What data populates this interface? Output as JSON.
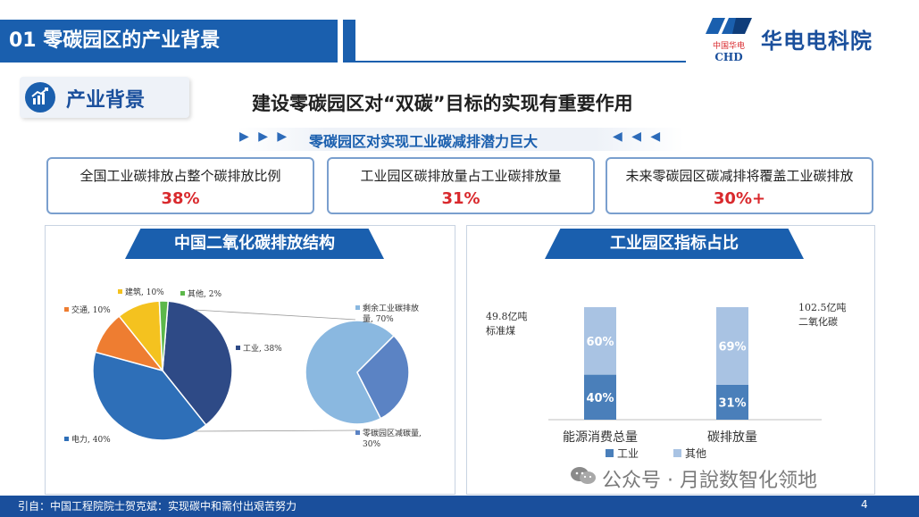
{
  "header": {
    "title": "01 零碳园区的产业背景",
    "brand_small_cn": "中国华电",
    "brand_small_en": "CHD",
    "brand_name": "华电电科院"
  },
  "section": {
    "label": "产业背景",
    "icon": "chart-growth-icon"
  },
  "heading": "建设零碳园区对“双碳”目标的实现有重要作用",
  "subheading": {
    "arrows_left": "▶ ▶ ▶",
    "text": "零碳园区对实现工业碳减排潜力巨大",
    "arrows_right": "◀ ◀ ◀"
  },
  "stats": [
    {
      "label": "全国工业碳排放占整个碳排放比例",
      "value": "38%"
    },
    {
      "label": "工业园区碳排放量占工业碳排放量",
      "value": "31%"
    },
    {
      "label": "未来零碳园区碳减排将覆盖工业碳排放",
      "value": "30%+"
    }
  ],
  "left_panel": {
    "title": "中国二氧化碳排放结构"
  },
  "right_panel": {
    "title": "工业园区指标占比"
  },
  "chart_data": [
    {
      "type": "pie",
      "slices": [
        {
          "label": "工业",
          "value": 38,
          "text": "工业, 38%",
          "color": "#2e4a86"
        },
        {
          "label": "电力",
          "value": 40,
          "text": "电力, 40%",
          "color": "#2e6fb8"
        },
        {
          "label": "交通",
          "value": 10,
          "text": "交通, 10%",
          "color": "#ee7d31"
        },
        {
          "label": "建筑",
          "value": 10,
          "text": "建筑, 10%",
          "color": "#f4c21f"
        },
        {
          "label": "其他",
          "value": 2,
          "text": "其他, 2%",
          "color": "#5cb84a"
        }
      ]
    },
    {
      "type": "pie",
      "slices": [
        {
          "label": "剩余工业碳排放量",
          "value": 70,
          "text_lines": [
            "剩余工业碳排放",
            "量, 70%"
          ],
          "color": "#8ab8e0"
        },
        {
          "label": "零碳园区减碳量",
          "value": 30,
          "text_lines": [
            "零碳园区减碳量,",
            "30%"
          ],
          "color": "#5b83c4"
        }
      ]
    },
    {
      "type": "bar",
      "stacked": true,
      "categories": [
        "能源消费总量",
        "碳排放量"
      ],
      "series": [
        {
          "name": "工业",
          "values": [
            40,
            31
          ],
          "labels": [
            "40%",
            "31%"
          ],
          "color": "#4a7fba"
        },
        {
          "name": "其他",
          "values": [
            60,
            69
          ],
          "labels": [
            "60%",
            "69%"
          ],
          "color": "#a9c3e3"
        }
      ],
      "annotations": [
        {
          "lines": [
            "49.8亿吨",
            "标准煤"
          ]
        },
        {
          "lines": [
            "102.5亿吨",
            "二氧化碳"
          ]
        }
      ],
      "ylim": [
        0,
        100
      ]
    }
  ],
  "watermark": {
    "icon": "wechat-icon",
    "text": "公众号 · 月說数智化领地"
  },
  "footer": {
    "source": "引自：中国工程院院士贺克斌：实现碳中和需付出艰苦努力",
    "page": "4"
  }
}
